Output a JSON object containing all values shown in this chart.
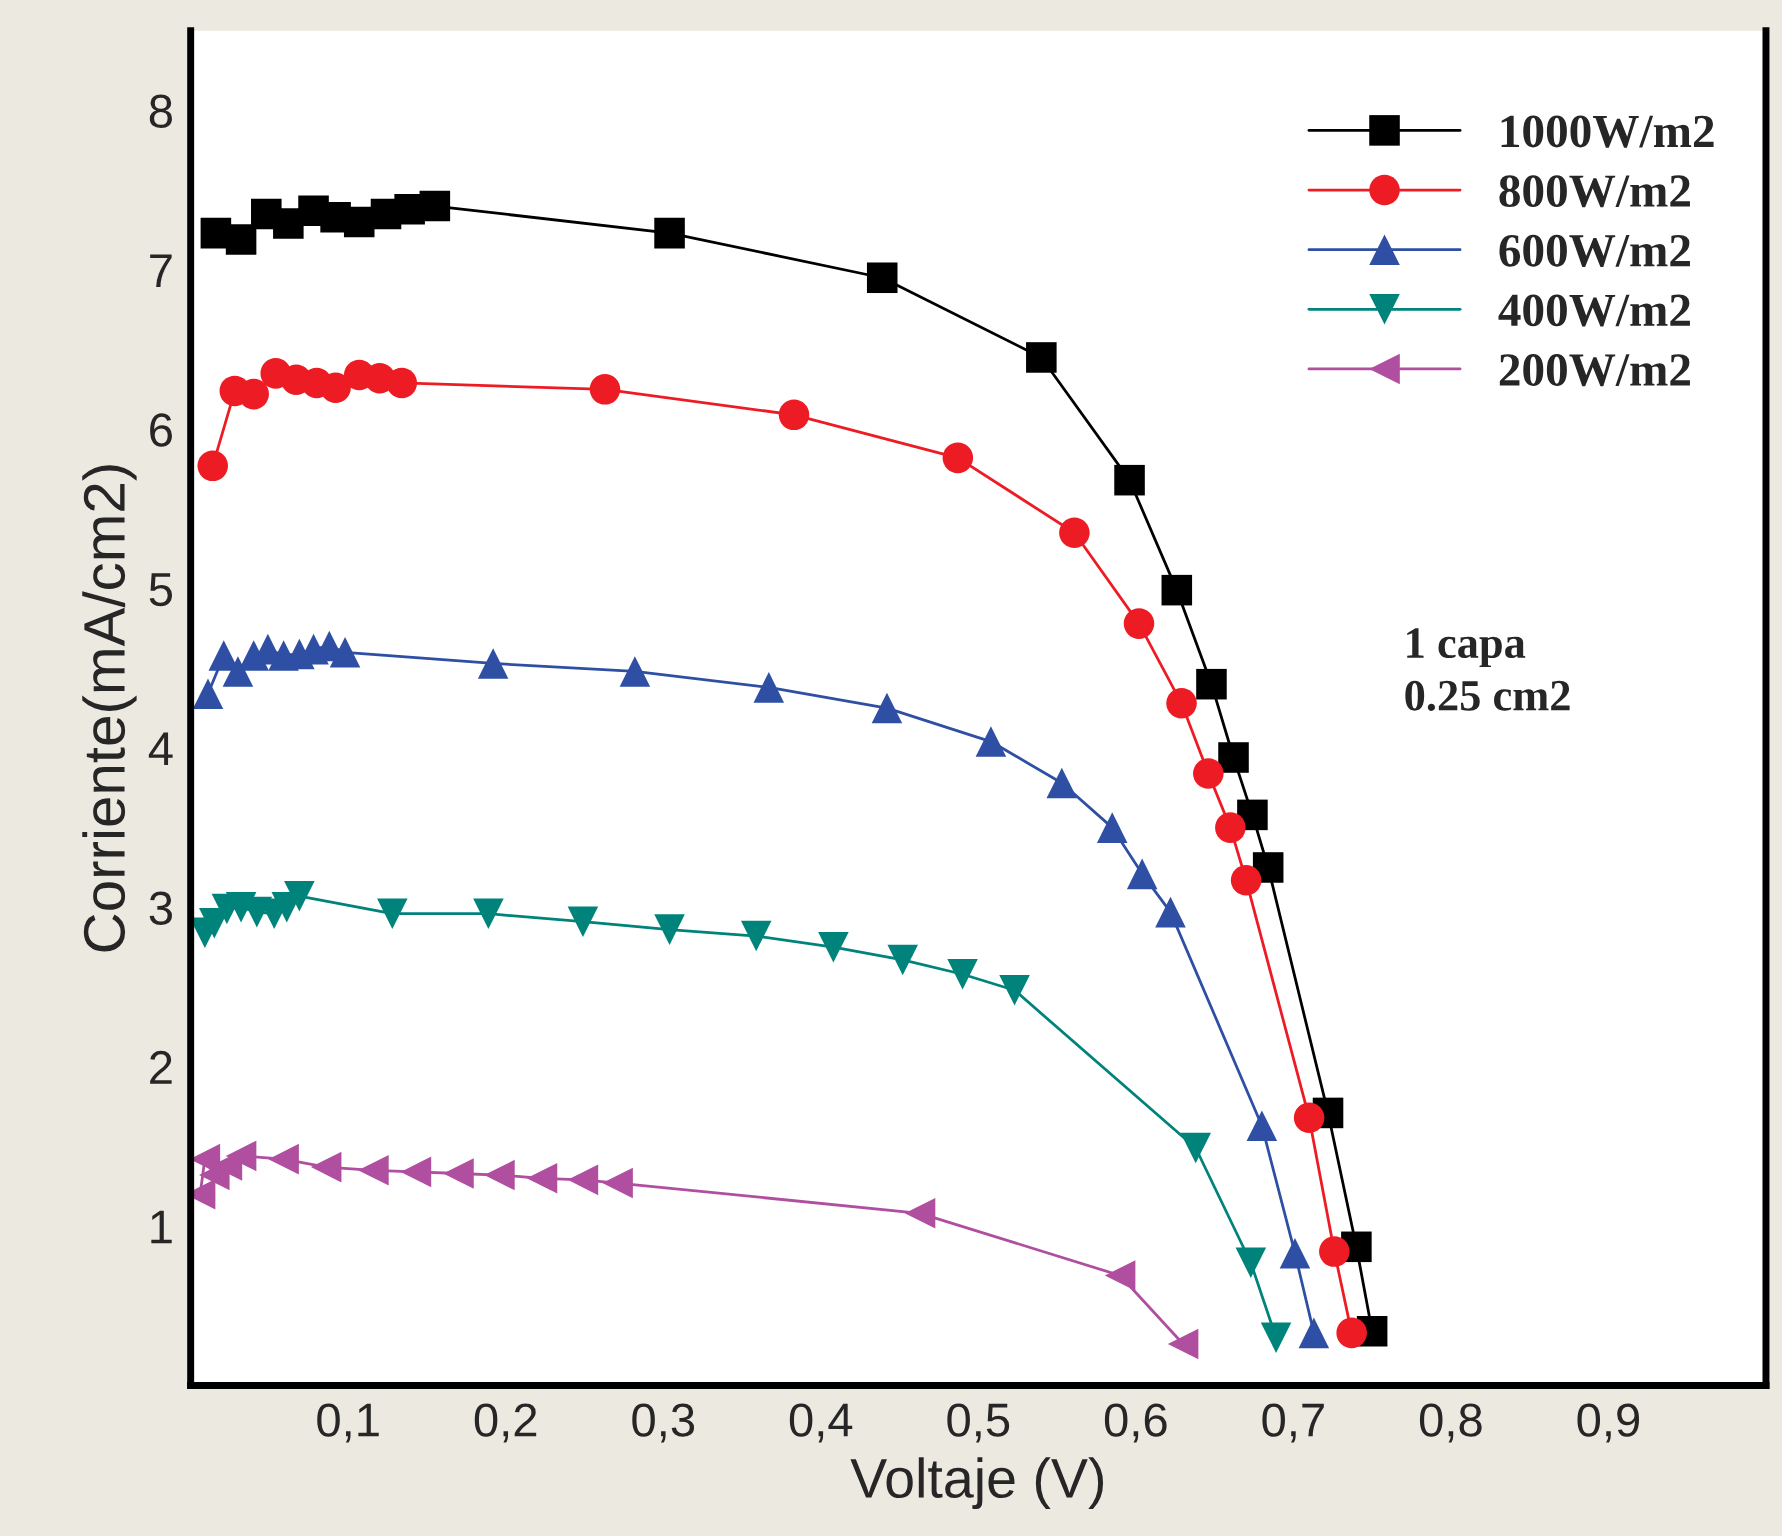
{
  "chart_data": {
    "type": "line",
    "xlabel": "Voltaje (V)",
    "ylabel": "Corriente(mA/cm2)",
    "xlim": [
      0,
      1.0
    ],
    "ylim": [
      0,
      8.5
    ],
    "xticks": [
      {
        "value": 0.1,
        "label": "0,1"
      },
      {
        "value": 0.2,
        "label": "0,2"
      },
      {
        "value": 0.3,
        "label": "0,3"
      },
      {
        "value": 0.4,
        "label": "0,4"
      },
      {
        "value": 0.5,
        "label": "0,5"
      },
      {
        "value": 0.6,
        "label": "0,6"
      },
      {
        "value": 0.7,
        "label": "0,7"
      },
      {
        "value": 0.8,
        "label": "0,8"
      },
      {
        "value": 0.9,
        "label": "0,9"
      }
    ],
    "yticks": [
      1,
      2,
      3,
      4,
      5,
      6,
      7,
      8
    ],
    "grid": false,
    "legend": "top right",
    "line_style": "solid",
    "annotations": [
      "1 capa\n0.25 cm2"
    ],
    "series": [
      {
        "name": "1000W/m2",
        "color": "#000000",
        "marker": "square",
        "x": [
          0.016,
          0.032,
          0.048,
          0.062,
          0.078,
          0.092,
          0.107,
          0.124,
          0.139,
          0.155,
          0.304,
          0.439,
          0.54,
          0.596,
          0.626,
          0.648,
          0.662,
          0.674,
          0.684,
          0.722,
          0.74,
          0.75
        ],
        "values": [
          7.23,
          7.19,
          7.35,
          7.29,
          7.37,
          7.33,
          7.3,
          7.35,
          7.38,
          7.4,
          7.23,
          6.95,
          6.45,
          5.68,
          4.99,
          4.4,
          3.94,
          3.58,
          3.25,
          1.71,
          0.87,
          0.34
        ]
      },
      {
        "name": "800W/m2",
        "color": "#ed1c24",
        "marker": "circle",
        "x": [
          0.014,
          0.028,
          0.04,
          0.054,
          0.067,
          0.08,
          0.092,
          0.107,
          0.12,
          0.134,
          0.263,
          0.383,
          0.487,
          0.561,
          0.602,
          0.629,
          0.646,
          0.66,
          0.67,
          0.71,
          0.726,
          0.737
        ],
        "values": [
          5.77,
          6.24,
          6.22,
          6.35,
          6.31,
          6.29,
          6.26,
          6.34,
          6.32,
          6.29,
          6.25,
          6.09,
          5.82,
          5.35,
          4.78,
          4.28,
          3.84,
          3.5,
          3.17,
          1.68,
          0.84,
          0.33
        ]
      },
      {
        "name": "600W/m2",
        "color": "#2e4fa3",
        "marker": "triangle",
        "x": [
          0.011,
          0.021,
          0.03,
          0.04,
          0.049,
          0.059,
          0.069,
          0.078,
          0.088,
          0.098,
          0.192,
          0.282,
          0.367,
          0.442,
          0.508,
          0.553,
          0.585,
          0.604,
          0.622,
          0.68,
          0.701,
          0.713
        ],
        "values": [
          4.34,
          4.58,
          4.48,
          4.58,
          4.62,
          4.58,
          4.59,
          4.62,
          4.64,
          4.6,
          4.53,
          4.48,
          4.38,
          4.25,
          4.04,
          3.78,
          3.5,
          3.21,
          2.97,
          1.63,
          0.83,
          0.33
        ]
      },
      {
        "name": "400W/m2",
        "color": "#00837b",
        "marker": "triangle_down",
        "x": [
          0.009,
          0.015,
          0.023,
          0.032,
          0.042,
          0.053,
          0.061,
          0.069,
          0.128,
          0.189,
          0.249,
          0.304,
          0.359,
          0.408,
          0.452,
          0.49,
          0.523,
          0.638,
          0.673,
          0.689
        ],
        "values": [
          2.84,
          2.9,
          2.99,
          3.0,
          2.97,
          2.96,
          3.0,
          3.07,
          2.96,
          2.96,
          2.91,
          2.86,
          2.82,
          2.75,
          2.67,
          2.58,
          2.48,
          1.49,
          0.77,
          0.3
        ]
      },
      {
        "name": "200W/m2",
        "color": "#b04fa0",
        "marker": "triangle_left",
        "x": [
          0.006,
          0.009,
          0.015,
          0.023,
          0.032,
          0.059,
          0.086,
          0.116,
          0.143,
          0.17,
          0.196,
          0.223,
          0.249,
          0.271,
          0.463,
          0.59,
          0.63
        ],
        "values": [
          1.2,
          1.42,
          1.32,
          1.38,
          1.44,
          1.42,
          1.37,
          1.35,
          1.34,
          1.33,
          1.32,
          1.3,
          1.29,
          1.27,
          1.08,
          0.69,
          0.26
        ]
      }
    ]
  }
}
